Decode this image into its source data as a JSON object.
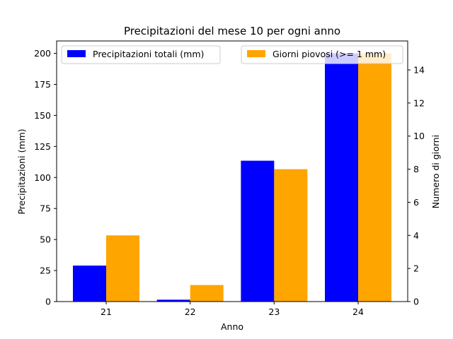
{
  "chart_data": {
    "type": "bar",
    "title": "Precipitazioni del mese 10 per ogni anno",
    "xlabel": "Anno",
    "ylabel_left": "Precipitazioni (mm)",
    "ylabel_right": "Numero di giorni",
    "categories": [
      "21",
      "22",
      "23",
      "24"
    ],
    "ylim_left": [
      0,
      210
    ],
    "ylim_right": [
      0,
      15.75
    ],
    "yticks_left": [
      0,
      25,
      50,
      75,
      100,
      125,
      150,
      175,
      200
    ],
    "yticks_right": [
      0,
      2,
      4,
      6,
      8,
      10,
      12,
      14
    ],
    "series": [
      {
        "name": "Precipitazioni totali (mm)",
        "axis": "left",
        "color": "#0000ff",
        "values": [
          29,
          1.5,
          113.5,
          200
        ]
      },
      {
        "name": "Giorni piovosi (>= 1 mm)",
        "axis": "right",
        "color": "#ffa500",
        "values": [
          4,
          1,
          8,
          15
        ]
      }
    ],
    "legend": {
      "left_position": "upper-left",
      "right_position": "upper-right"
    },
    "grid": false,
    "ylabel_left_color": "#0000ff",
    "ylabel_right_color": "#ffa500"
  }
}
